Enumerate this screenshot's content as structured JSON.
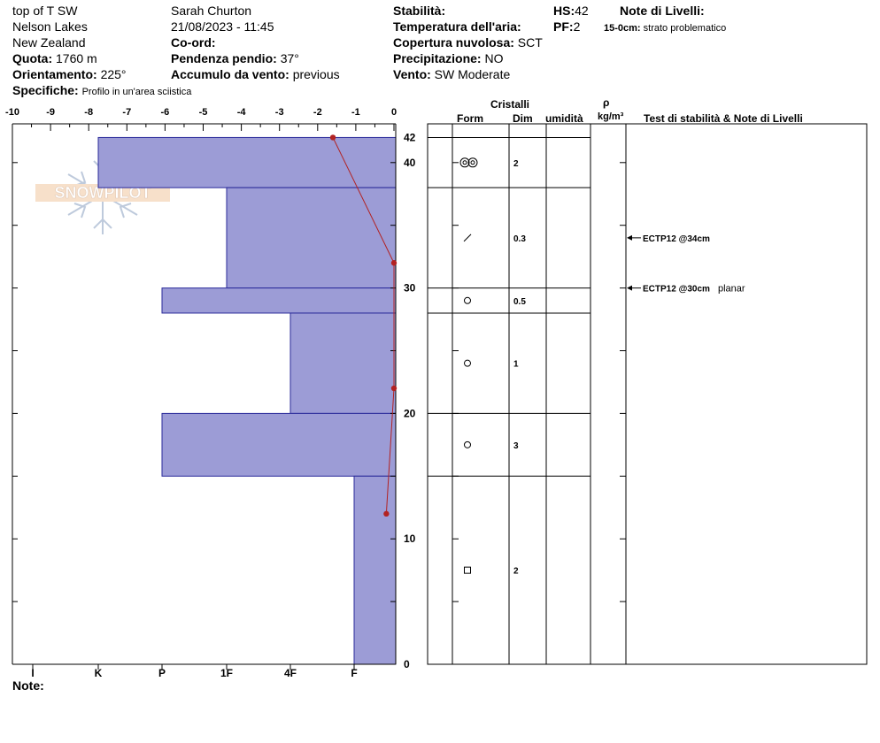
{
  "header": {
    "location": "top of T SW",
    "area": "Nelson Lakes",
    "country": "New Zealand",
    "quota_label": "Quota:",
    "quota_value": "1760 m",
    "orient_label": "Orientamento:",
    "orient_value": "225°",
    "spec_label": "Specifiche:",
    "spec_value": "Profilo in un'area sciistica",
    "observer": "Sarah Churton",
    "datetime": "21/08/2023 - 11:45",
    "coord_label": "Co-ord:",
    "slope_label": "Pendenza pendio:",
    "slope_value": "37°",
    "wind_load_label": "Accumulo da vento:",
    "wind_load_value": "previous",
    "stability_label": "Stabilità:",
    "air_temp_label": "Temperatura dell'aria:",
    "cloud_label": "Copertura nuvolosa:",
    "cloud_value": "SCT",
    "precip_label": "Precipitazione:",
    "precip_value": "NO",
    "wind_label": "Vento:",
    "wind_value": "SW Moderate",
    "hs_label": "HS:",
    "hs_value": "42",
    "pf_label": "PF:",
    "pf_value": "2",
    "layer_notes_label": "Note di Livelli:",
    "layer_note_depth": "15-0cm:",
    "layer_note_text": "strato problematico"
  },
  "columns": {
    "crystals": "Cristalli",
    "form": "Form",
    "size": "Dim",
    "moisture": "umidità",
    "rho": "ρ",
    "density_unit": "kg/m³",
    "tests": "Test di stabilità & Note di Livelli"
  },
  "notes_label": "Note:",
  "logo_text": "SNOWPILOT",
  "colors": {
    "layer_fill": "#9c9cd6",
    "layer_stroke": "#2a2a9a",
    "temp_line": "#b22222"
  },
  "chart_data": {
    "type": "bar",
    "temp_axis": {
      "ticks": [
        "-10",
        "-9",
        "-8",
        "-7",
        "-6",
        "-5",
        "-4",
        "-3",
        "-2",
        "-1",
        "0"
      ],
      "range": [
        -10,
        0
      ]
    },
    "height_axis": {
      "range": [
        0,
        43
      ],
      "labels": [
        "0",
        "10",
        "20",
        "30",
        "40",
        "42"
      ]
    },
    "hardness_labels": [
      "I",
      "K",
      "P",
      "1F",
      "4F",
      "F"
    ],
    "layers": [
      {
        "top": 42,
        "bottom": 38,
        "hardness": "K",
        "form": "double-circle",
        "size": "2"
      },
      {
        "top": 38,
        "bottom": 30,
        "hardness": "1F",
        "form": "slash",
        "size": "0.3"
      },
      {
        "top": 30,
        "bottom": 28,
        "hardness": "P",
        "form": "circle",
        "size": "0.5"
      },
      {
        "top": 28,
        "bottom": 20,
        "hardness": "4F",
        "form": "circle",
        "size": "1"
      },
      {
        "top": 20,
        "bottom": 15,
        "hardness": "P",
        "form": "circle",
        "size": "3"
      },
      {
        "top": 15,
        "bottom": 0,
        "hardness": "F",
        "form": "square",
        "size": "2"
      }
    ],
    "temperature_profile": [
      {
        "height": 42,
        "temp": -1.6
      },
      {
        "height": 32,
        "temp": 0
      },
      {
        "height": 22,
        "temp": 0
      },
      {
        "height": 12,
        "temp": -0.2
      }
    ],
    "tests": [
      {
        "height": 34,
        "label": "ECTP12 @34cm",
        "note": ""
      },
      {
        "height": 30,
        "label": "ECTP12 @30cm",
        "note": "planar"
      }
    ]
  }
}
